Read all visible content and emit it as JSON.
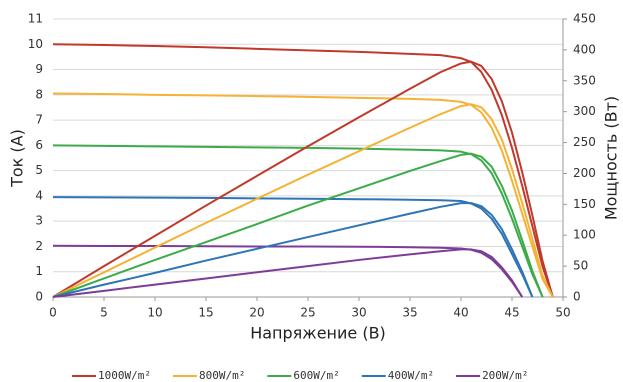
{
  "chart_data": {
    "type": "line",
    "x_label": "Напряжение (B)",
    "y_label": "Ток (A)",
    "y2_label": "Мощность (Вт)",
    "x": [
      0,
      5,
      10,
      15,
      20,
      25,
      30,
      35,
      38,
      40,
      41,
      42,
      43,
      44,
      45,
      46,
      47,
      48,
      49
    ],
    "xlim": [
      0,
      50
    ],
    "xticks": [
      0,
      5,
      10,
      15,
      20,
      25,
      30,
      35,
      40,
      45,
      50
    ],
    "ylim": [
      0,
      11
    ],
    "yticks": [
      0,
      1,
      2,
      3,
      4,
      5,
      6,
      7,
      8,
      9,
      10,
      11
    ],
    "y2lim": [
      0,
      450
    ],
    "y2ticks": [
      0,
      50,
      100,
      150,
      200,
      250,
      300,
      350,
      400,
      450
    ],
    "grid": true,
    "series": [
      {
        "name": "1000W/m²",
        "color": "#c0392b",
        "values": [
          10,
          9.97,
          9.93,
          9.88,
          9.82,
          9.76,
          9.7,
          9.62,
          9.57,
          9.45,
          9.3,
          8.9,
          8.2,
          7.2,
          5.9,
          4.4,
          2.8,
          1.2,
          0
        ]
      },
      {
        "name": "800W/m²",
        "color": "#f5b335",
        "values": [
          8.05,
          8.03,
          8.0,
          7.98,
          7.95,
          7.92,
          7.88,
          7.84,
          7.8,
          7.72,
          7.6,
          7.3,
          6.7,
          5.8,
          4.6,
          3.3,
          2.0,
          0.7,
          0
        ]
      },
      {
        "name": "600W/m²",
        "color": "#3cab4a",
        "values": [
          6.0,
          5.98,
          5.96,
          5.94,
          5.92,
          5.9,
          5.87,
          5.83,
          5.8,
          5.75,
          5.65,
          5.4,
          4.9,
          4.1,
          3.1,
          2.0,
          0.9,
          0,
          null
        ]
      },
      {
        "name": "400W/m²",
        "color": "#2e75b6",
        "values": [
          3.95,
          3.94,
          3.93,
          3.92,
          3.9,
          3.89,
          3.87,
          3.85,
          3.83,
          3.8,
          3.7,
          3.5,
          3.1,
          2.5,
          1.7,
          0.9,
          0,
          null,
          null
        ]
      },
      {
        "name": "200W/m²",
        "color": "#7d3c98",
        "values": [
          2.03,
          2.02,
          2.02,
          2.01,
          2.0,
          2.0,
          1.99,
          1.97,
          1.95,
          1.92,
          1.87,
          1.75,
          1.5,
          1.1,
          0.6,
          0,
          null,
          null,
          null
        ]
      },
      {
        "color": "#c0392b",
        "axis": "y2",
        "values": [
          0,
          50,
          99,
          148,
          196,
          244,
          291,
          337,
          364,
          378,
          381,
          374,
          353,
          317,
          266,
          202,
          132,
          58,
          0
        ]
      },
      {
        "color": "#f5b335",
        "axis": "y2",
        "values": [
          0,
          40,
          80,
          120,
          159,
          198,
          236,
          274,
          296,
          309,
          312,
          307,
          288,
          255,
          207,
          152,
          94,
          34,
          0
        ]
      },
      {
        "color": "#3cab4a",
        "axis": "y2",
        "values": [
          0,
          30,
          60,
          89,
          118,
          148,
          176,
          204,
          220,
          230,
          232,
          227,
          211,
          180,
          140,
          92,
          42,
          0,
          null
        ]
      },
      {
        "color": "#2e75b6",
        "axis": "y2",
        "values": [
          0,
          20,
          39,
          59,
          78,
          97,
          116,
          135,
          146,
          152,
          152,
          147,
          133,
          110,
          77,
          41,
          0,
          null,
          null
        ]
      },
      {
        "color": "#7d3c98",
        "axis": "y2",
        "values": [
          0,
          10,
          20,
          30,
          40,
          50,
          60,
          69,
          74,
          77,
          77,
          74,
          65,
          48,
          27,
          0,
          null,
          null,
          null
        ]
      }
    ]
  }
}
